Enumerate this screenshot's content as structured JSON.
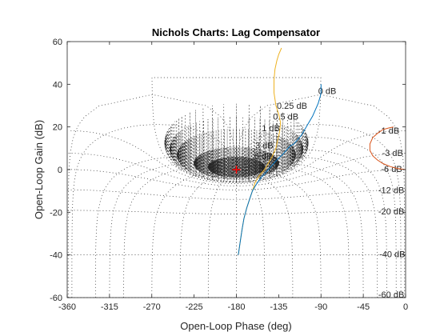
{
  "chart_data": {
    "type": "line",
    "title": "Nichols Charts: Lag Compensator",
    "xlabel": "Open-Loop Phase (deg)",
    "ylabel": "Open-Loop Gain (dB)",
    "xlim": [
      -360,
      0
    ],
    "ylim": [
      -60,
      60
    ],
    "xticks": [
      -360,
      -315,
      -270,
      -225,
      -180,
      -135,
      -90,
      -45,
      0
    ],
    "yticks": [
      -60,
      -40,
      -20,
      0,
      20,
      40,
      60
    ],
    "grid": "nichols",
    "grid_color": "#262626",
    "closed_loop_magnitude_labels": [
      "0 dB",
      "0.25 dB",
      "0.5 dB",
      "1 dB",
      "3 dB",
      "6 dB",
      "-1 dB",
      "-3 dB",
      "-6 dB",
      "-12 dB",
      "-20 dB",
      "-40 dB",
      "-60 dB"
    ],
    "critical_point": {
      "x": -180,
      "y": 0,
      "marker": "+",
      "color": "#ff0000"
    },
    "series": [
      {
        "color": "#edb120",
        "x": [
          -178,
          -176,
          -174,
          -172,
          -169,
          -166,
          -163,
          -160,
          -156,
          -150,
          -146,
          -142,
          -138,
          -136,
          -134,
          -133,
          -135,
          -138,
          -140,
          -140,
          -139,
          -137,
          -135,
          -133,
          -132
        ],
        "y": [
          -40,
          -34,
          -28,
          -23,
          -18,
          -14,
          -10,
          -6,
          -3,
          0,
          3,
          6,
          10,
          14,
          18,
          22,
          26,
          30,
          36,
          42,
          47,
          51,
          54,
          56,
          57
        ]
      },
      {
        "color": "#0072bd",
        "x": [
          -178,
          -176,
          -174,
          -172,
          -169,
          -166,
          -163,
          -159,
          -154,
          -148,
          -142,
          -136,
          -131,
          -127,
          -123,
          -119,
          -115,
          -111,
          -107,
          -103,
          -99,
          -96,
          -93,
          -91,
          -90,
          -90,
          -90
        ],
        "y": [
          -40,
          -34,
          -28,
          -23,
          -18,
          -14,
          -10,
          -7,
          -4,
          -1,
          2,
          5,
          7,
          9,
          11,
          12,
          14,
          16,
          19,
          22,
          25,
          28,
          31,
          34,
          36,
          38,
          40
        ]
      },
      {
        "color": "#d95319",
        "x": [
          0,
          -8,
          -16,
          -24,
          -30,
          -35,
          -38,
          -38,
          -35,
          -30,
          -24,
          -18,
          -13
        ],
        "y": [
          0,
          0.5,
          1.4,
          2.8,
          4.5,
          6.5,
          9,
          12,
          15,
          17,
          18.8,
          19.5,
          20
        ]
      }
    ]
  }
}
